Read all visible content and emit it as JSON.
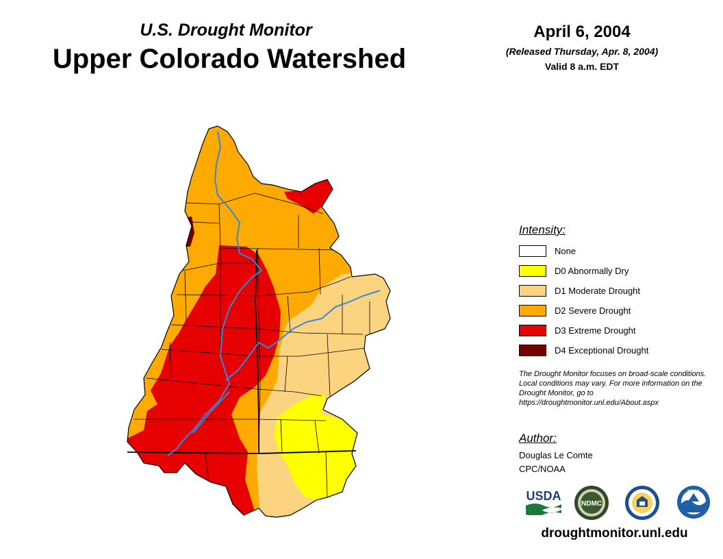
{
  "header": {
    "subtitle": "U.S. Drought Monitor",
    "title": "Upper Colorado Watershed",
    "date": "April 6, 2004",
    "released": "(Released Thursday, Apr. 8, 2004)",
    "valid": "Valid 8 a.m. EDT"
  },
  "legend": {
    "heading": "Intensity:",
    "items": [
      {
        "label": "None",
        "color": "#ffffff"
      },
      {
        "label": "D0 Abnormally Dry",
        "color": "#ffff00"
      },
      {
        "label": "D1 Moderate Drought",
        "color": "#fcd37f"
      },
      {
        "label": "D2 Severe Drought",
        "color": "#ffaa00"
      },
      {
        "label": "D3 Extreme Drought",
        "color": "#e60000"
      },
      {
        "label": "D4 Exceptional Drought",
        "color": "#730000"
      }
    ]
  },
  "note": "The Drought Monitor focuses on broad-scale conditions. Local conditions may vary. For more information on the Drought Monitor, go to https://droughtmonitor.unl.edu/About.aspx",
  "author": {
    "heading": "Author:",
    "name": "Douglas Le Comte",
    "org": "CPC/NOAA"
  },
  "logos": {
    "usda": "USDA",
    "ndmc": "NDMC",
    "noaa": "NOAA"
  },
  "website": "droughtmonitor.unl.edu",
  "map": {
    "region": "Upper Colorado Watershed",
    "river_color": "#3388dd"
  }
}
